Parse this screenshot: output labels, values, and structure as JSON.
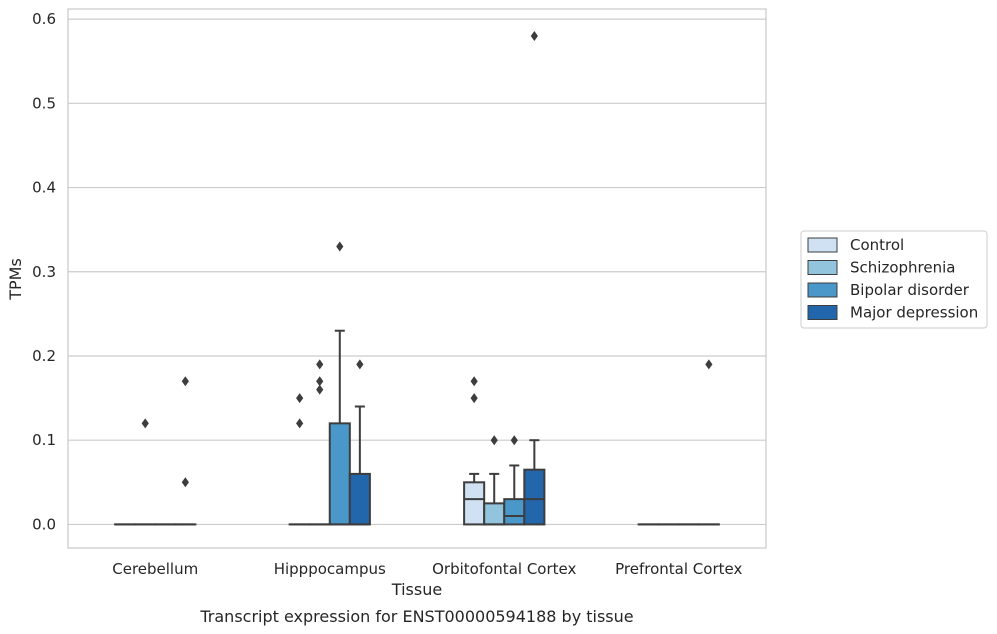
{
  "caption": "Transcript expression for ENST00000594188 by tissue",
  "chart_data": {
    "type": "box",
    "xlabel": "Tissue",
    "ylabel": "TPMs",
    "ylim": [
      -0.028,
      0.612
    ],
    "yticks": [
      0.0,
      0.1,
      0.2,
      0.3,
      0.4,
      0.5,
      0.6
    ],
    "ytick_labels": [
      "0.0",
      "0.1",
      "0.2",
      "0.3",
      "0.4",
      "0.5",
      "0.6"
    ],
    "grid": "horizontal",
    "legend_placement": "right",
    "categories": [
      "Cerebellum",
      "Hipppocampus",
      "Orbitofontal Cortex",
      "Prefrontal Cortex"
    ],
    "series": [
      {
        "name": "Control",
        "color": "#cfe1f2",
        "boxes": [
          {
            "q1": 0,
            "median": 0,
            "q3": 0,
            "whislo": 0,
            "whishi": 0,
            "fliers": []
          },
          {
            "q1": 0,
            "median": 0,
            "q3": 0,
            "whislo": 0,
            "whishi": 0,
            "fliers": [
              0.12,
              0.15
            ]
          },
          {
            "q1": 0,
            "median": 0.03,
            "q3": 0.05,
            "whislo": 0,
            "whishi": 0.06,
            "fliers": [
              0.15,
              0.17
            ]
          },
          {
            "q1": 0,
            "median": 0,
            "q3": 0,
            "whislo": 0,
            "whishi": 0,
            "fliers": []
          }
        ]
      },
      {
        "name": "Schizophrenia",
        "color": "#93c4de",
        "boxes": [
          {
            "q1": 0,
            "median": 0,
            "q3": 0,
            "whislo": 0,
            "whishi": 0,
            "fliers": [
              0.12
            ]
          },
          {
            "q1": 0,
            "median": 0,
            "q3": 0,
            "whislo": 0,
            "whishi": 0,
            "fliers": [
              0.16,
              0.17,
              0.19
            ]
          },
          {
            "q1": 0,
            "median": 0,
            "q3": 0.025,
            "whislo": 0,
            "whishi": 0.06,
            "fliers": [
              0.1
            ]
          },
          {
            "q1": 0,
            "median": 0,
            "q3": 0,
            "whislo": 0,
            "whishi": 0,
            "fliers": []
          }
        ]
      },
      {
        "name": "Bipolar disorder",
        "color": "#4a98c9",
        "boxes": [
          {
            "q1": 0,
            "median": 0,
            "q3": 0,
            "whislo": 0,
            "whishi": 0,
            "fliers": []
          },
          {
            "q1": 0,
            "median": 0,
            "q3": 0.12,
            "whislo": 0,
            "whishi": 0.23,
            "fliers": [
              0.33
            ]
          },
          {
            "q1": 0,
            "median": 0.01,
            "q3": 0.03,
            "whislo": 0,
            "whishi": 0.07,
            "fliers": [
              0.1
            ]
          },
          {
            "q1": 0,
            "median": 0,
            "q3": 0,
            "whislo": 0,
            "whishi": 0,
            "fliers": []
          }
        ]
      },
      {
        "name": "Major depression",
        "color": "#2266ac",
        "boxes": [
          {
            "q1": 0,
            "median": 0,
            "q3": 0,
            "whislo": 0,
            "whishi": 0,
            "fliers": [
              0.05,
              0.17
            ]
          },
          {
            "q1": 0,
            "median": 0,
            "q3": 0.06,
            "whislo": 0,
            "whishi": 0.14,
            "fliers": [
              0.19
            ]
          },
          {
            "q1": 0,
            "median": 0.03,
            "q3": 0.065,
            "whislo": 0,
            "whishi": 0.1,
            "fliers": [
              0.58
            ]
          },
          {
            "q1": 0,
            "median": 0,
            "q3": 0,
            "whislo": 0,
            "whishi": 0,
            "fliers": [
              0.19
            ]
          }
        ]
      }
    ],
    "colors": {
      "grid": "#cccccc",
      "frame": "#cccccc",
      "edge": "#3d3d3d",
      "flier": "#3d3d3d"
    }
  }
}
